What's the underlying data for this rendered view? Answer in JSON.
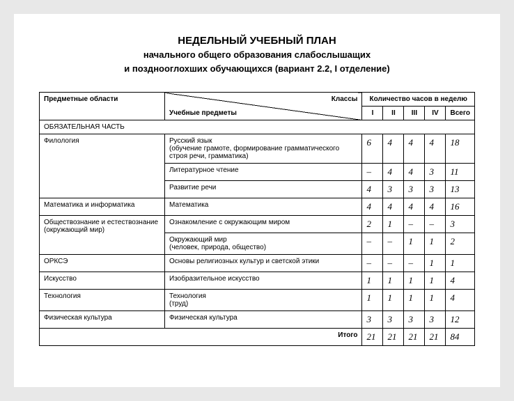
{
  "title": {
    "line1": "НЕДЕЛЬНЫЙ УЧЕБНЫЙ ПЛАН",
    "line2": "начального общего образования слабослышащих",
    "line3": "и позднооглохших обучающихся (вариант 2.2, I отделение)"
  },
  "headers": {
    "subject_areas": "Предметные области",
    "classes": "Классы",
    "subjects": "Учебные предметы",
    "hours_per_week": "Количество часов в неделю",
    "c1": "I",
    "c2": "II",
    "c3": "III",
    "c4": "IV",
    "total": "Всего"
  },
  "section": "ОБЯЗАТЕЛЬНАЯ ЧАСТЬ",
  "rows": {
    "r1": {
      "area": "Филология",
      "subject": "Русский язык",
      "note": "(обучение грамоте, формирование граммати­ческого строя речи, грамматика)",
      "v1": "6",
      "v2": "4",
      "v3": "4",
      "v4": "4",
      "t": "18"
    },
    "r2": {
      "subject": "Литературное чтение",
      "v1": "–",
      "v2": "4",
      "v3": "4",
      "v4": "3",
      "t": "11"
    },
    "r3": {
      "subject": "Развитие речи",
      "v1": "4",
      "v2": "3",
      "v3": "3",
      "v4": "3",
      "t": "13"
    },
    "r4": {
      "area": "Математика и информатика",
      "subject": "Математика",
      "v1": "4",
      "v2": "4",
      "v3": "4",
      "v4": "4",
      "t": "16"
    },
    "r5": {
      "area": "Обществознание и естествознание (окружающий мир)",
      "subject": "Ознакомление с окружающим миром",
      "v1": "2",
      "v2": "1",
      "v3": "–",
      "v4": "–",
      "t": "3"
    },
    "r6": {
      "subject": "Окружающий мир",
      "note": "(человек, природа, общество)",
      "v1": "–",
      "v2": "–",
      "v3": "1",
      "v4": "1",
      "t": "2"
    },
    "r7": {
      "area": "ОРКСЭ",
      "subject": "Основы религиозных культур и светской этики",
      "v1": "–",
      "v2": "–",
      "v3": "–",
      "v4": "1",
      "t": "1"
    },
    "r8": {
      "area": "Искусство",
      "subject": "Изобразительное искусство",
      "v1": "1",
      "v2": "1",
      "v3": "1",
      "v4": "1",
      "t": "4"
    },
    "r9": {
      "area": "Технология",
      "subject": "Технология",
      "note": "(труд)",
      "v1": "1",
      "v2": "1",
      "v3": "1",
      "v4": "1",
      "t": "4"
    },
    "r10": {
      "area": "Физическая культура",
      "subject": "Физическая культура",
      "v1": "3",
      "v2": "3",
      "v3": "3",
      "v4": "3",
      "t": "12"
    }
  },
  "totals": {
    "label": "Итого",
    "v1": "21",
    "v2": "21",
    "v3": "21",
    "v4": "21",
    "t": "84"
  }
}
